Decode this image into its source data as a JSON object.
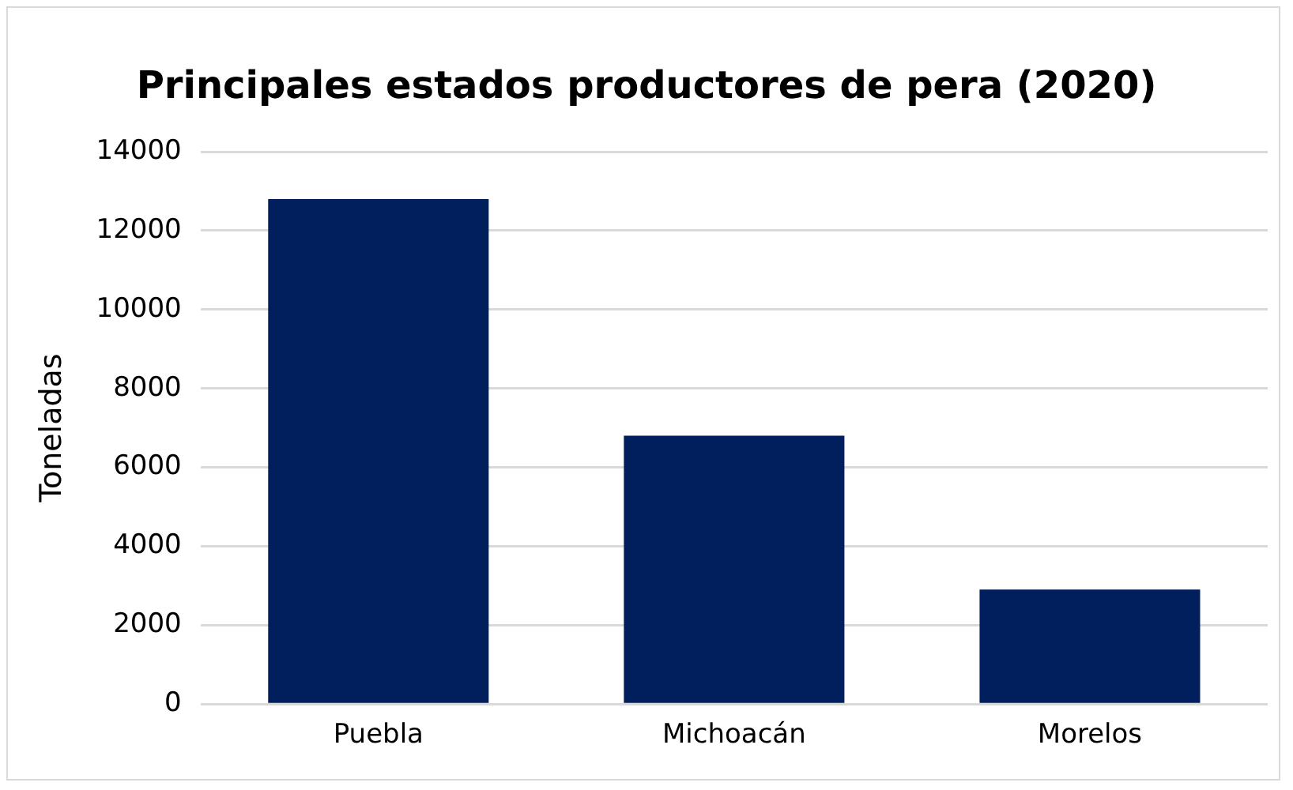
{
  "chart_data": {
    "type": "bar",
    "title": "Principales estados productores de pera (2020)",
    "ylabel": "Toneladas",
    "categories": [
      "Puebla",
      "Michoacán",
      "Morelos"
    ],
    "values": [
      12800,
      6800,
      2900
    ],
    "color": "#001f5c",
    "ylim": [
      0,
      14000
    ],
    "yticks": [
      0,
      2000,
      4000,
      6000,
      8000,
      10000,
      12000,
      14000
    ],
    "grid": "y"
  }
}
